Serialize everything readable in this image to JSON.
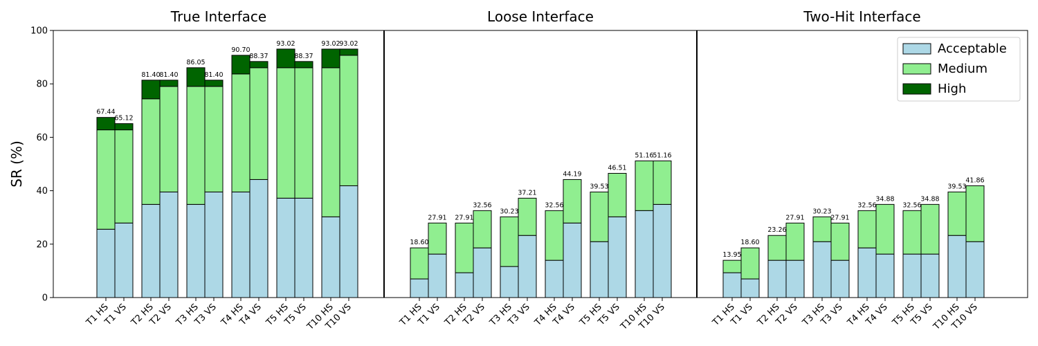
{
  "ylabel": "SR (%)",
  "yticks": [
    "0",
    "20",
    "40",
    "60",
    "80",
    "100"
  ],
  "legend": {
    "placement": "top-right",
    "items": [
      {
        "label": "Acceptable",
        "color": "#add8e6"
      },
      {
        "label": "Medium",
        "color": "#90ee90"
      },
      {
        "label": "High",
        "color": "#006400"
      }
    ]
  },
  "chart_data": {
    "type": "bar",
    "stacked": true,
    "ylim": [
      0,
      100
    ],
    "categories": [
      "T1 HS",
      "T1 VS",
      "T2 HS",
      "T2 VS",
      "T3 HS",
      "T3 VS",
      "T4 HS",
      "T4 VS",
      "T5 HS",
      "T5 VS",
      "T10 HS",
      "T10 VS"
    ],
    "panels": [
      {
        "title": "True Interface",
        "series": [
          {
            "name": "Acceptable",
            "values": [
              25.58,
              27.91,
              34.88,
              39.53,
              34.88,
              39.53,
              39.53,
              44.19,
              37.21,
              37.21,
              30.23,
              41.86
            ]
          },
          {
            "name": "Medium",
            "values": [
              37.21,
              34.88,
              39.53,
              39.53,
              44.19,
              39.53,
              44.19,
              41.86,
              48.84,
              48.84,
              55.81,
              48.84
            ]
          },
          {
            "name": "High",
            "values": [
              4.65,
              2.33,
              6.98,
              2.33,
              6.98,
              2.33,
              6.98,
              2.33,
              6.98,
              2.33,
              6.98,
              2.33
            ]
          }
        ],
        "totals": [
          "67.44",
          "65.12",
          "81.40",
          "81.40",
          "86.05",
          "81.40",
          "90.70",
          "88.37",
          "93.02",
          "88.37",
          "93.02",
          "93.02"
        ]
      },
      {
        "title": "Loose Interface",
        "series": [
          {
            "name": "Acceptable",
            "values": [
              6.98,
              16.28,
              9.3,
              18.6,
              11.63,
              23.26,
              13.95,
              27.91,
              20.93,
              30.23,
              32.56,
              34.88
            ]
          },
          {
            "name": "Medium",
            "values": [
              11.63,
              11.63,
              18.6,
              13.95,
              18.6,
              13.95,
              18.6,
              16.28,
              18.6,
              16.28,
              18.6,
              16.28
            ]
          },
          {
            "name": "High",
            "values": [
              0,
              0,
              0,
              0,
              0,
              0,
              0,
              0,
              0,
              0,
              0,
              0
            ]
          }
        ],
        "totals": [
          "18.60",
          "27.91",
          "27.91",
          "32.56",
          "30.23",
          "37.21",
          "32.56",
          "44.19",
          "39.53",
          "46.51",
          "51.16",
          "51.16"
        ]
      },
      {
        "title": "Two-Hit Interface",
        "series": [
          {
            "name": "Acceptable",
            "values": [
              9.3,
              6.98,
              13.95,
              13.95,
              20.93,
              13.95,
              18.6,
              16.28,
              16.28,
              16.28,
              23.26,
              20.93
            ]
          },
          {
            "name": "Medium",
            "values": [
              4.65,
              11.63,
              9.3,
              13.95,
              9.3,
              13.95,
              13.95,
              18.6,
              16.28,
              18.6,
              16.28,
              20.93
            ]
          },
          {
            "name": "High",
            "values": [
              0,
              0,
              0,
              0,
              0,
              0,
              0,
              0,
              0,
              0,
              0,
              0
            ]
          }
        ],
        "totals": [
          "13.95",
          "18.60",
          "23.26",
          "27.91",
          "30.23",
          "27.91",
          "32.56",
          "34.88",
          "32.56",
          "34.88",
          "39.53",
          "41.86"
        ]
      }
    ]
  }
}
